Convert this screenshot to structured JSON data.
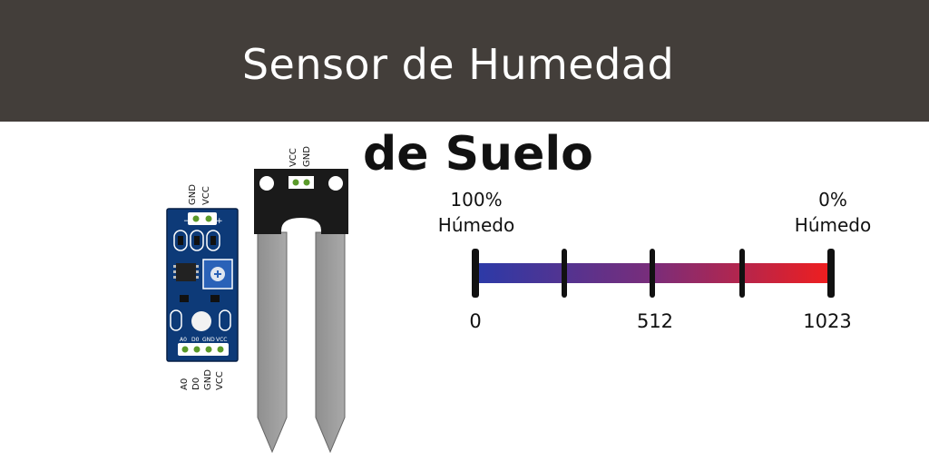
{
  "header": {
    "title": "Sensor de Humedad"
  },
  "subtitle": "de Suelo",
  "scale": {
    "left_percent": "100%",
    "left_word": "Húmedo",
    "right_percent": "0%",
    "right_word": "Húmedo",
    "ticks": [
      "0",
      "512",
      "1023"
    ],
    "color_start": "#2b3aa8",
    "color_end": "#f01e1e"
  },
  "probe": {
    "pins": [
      "VCC",
      "GND"
    ]
  },
  "module": {
    "top_pins": [
      "GND",
      "VCC"
    ],
    "top_pin_marks": [
      "−",
      "+"
    ],
    "bottom_pins": [
      "A0",
      "D0",
      "GND",
      "VCC"
    ],
    "board_pin_labels": [
      "A0",
      "D0",
      "GND",
      "VCC"
    ],
    "board_color": "#0d3a78"
  }
}
